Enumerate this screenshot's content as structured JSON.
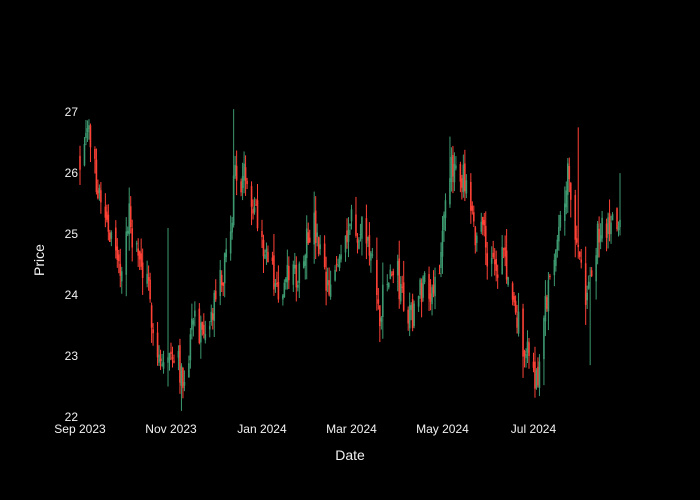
{
  "chart_data": {
    "type": "candlestick",
    "xlabel": "Date",
    "ylabel": "Price",
    "x_range": [
      "2023-09-01",
      "2024-08-28"
    ],
    "ylim": [
      21.95,
      27.2
    ],
    "x_ticks": [
      {
        "date": "2023-09-01",
        "label": "Sep 2023"
      },
      {
        "date": "2023-11-01",
        "label": "Nov 2023"
      },
      {
        "date": "2024-01-01",
        "label": "Jan 2024"
      },
      {
        "date": "2024-03-01",
        "label": "Mar 2024"
      },
      {
        "date": "2024-05-01",
        "label": "May 2024"
      },
      {
        "date": "2024-07-01",
        "label": "Jul 2024"
      }
    ],
    "y_ticks": [
      22,
      23,
      24,
      25,
      26,
      27
    ],
    "grid": false,
    "legend": "none",
    "colors": {
      "increasing": "#3d9970",
      "decreasing": "#ff4136",
      "background": "#000000",
      "text": "#f2f2f2"
    },
    "close_path": [
      [
        "2023-09-01",
        26.2
      ],
      [
        "2023-09-05",
        26.9
      ],
      [
        "2023-09-08",
        26.5
      ],
      [
        "2023-09-12",
        25.9
      ],
      [
        "2023-09-15",
        25.6
      ],
      [
        "2023-09-19",
        25.3
      ],
      [
        "2023-09-23",
        24.8
      ],
      [
        "2023-09-27",
        24.4
      ],
      [
        "2023-10-01",
        24.7
      ],
      [
        "2023-10-04",
        25.3
      ],
      [
        "2023-10-08",
        24.7
      ],
      [
        "2023-10-12",
        24.5
      ],
      [
        "2023-10-16",
        24.1
      ],
      [
        "2023-10-20",
        23.6
      ],
      [
        "2023-10-24",
        23.0
      ],
      [
        "2023-10-28",
        22.8
      ],
      [
        "2023-11-01",
        23.0
      ],
      [
        "2023-11-05",
        23.3
      ],
      [
        "2023-11-08",
        22.6
      ],
      [
        "2023-11-12",
        22.9
      ],
      [
        "2023-11-16",
        23.8
      ],
      [
        "2023-11-20",
        23.4
      ],
      [
        "2023-11-24",
        23.1
      ],
      [
        "2023-11-28",
        23.6
      ],
      [
        "2023-12-02",
        24.1
      ],
      [
        "2023-12-06",
        24.3
      ],
      [
        "2023-12-10",
        24.8
      ],
      [
        "2023-12-14",
        26.1
      ],
      [
        "2023-12-18",
        25.8
      ],
      [
        "2023-12-22",
        26.0
      ],
      [
        "2023-12-26",
        25.6
      ],
      [
        "2024-01-01",
        25.0
      ],
      [
        "2024-01-05",
        24.6
      ],
      [
        "2024-01-10",
        24.2
      ],
      [
        "2024-01-15",
        23.9
      ],
      [
        "2024-01-20",
        24.5
      ],
      [
        "2024-01-25",
        24.3
      ],
      [
        "2024-01-30",
        24.9
      ],
      [
        "2024-02-04",
        25.2
      ],
      [
        "2024-02-09",
        24.6
      ],
      [
        "2024-02-14",
        24.0
      ],
      [
        "2024-02-19",
        24.3
      ],
      [
        "2024-02-24",
        24.9
      ],
      [
        "2024-03-01",
        25.3
      ],
      [
        "2024-03-05",
        24.8
      ],
      [
        "2024-03-10",
        25.2
      ],
      [
        "2024-03-15",
        24.4
      ],
      [
        "2024-03-20",
        23.7
      ],
      [
        "2024-03-25",
        24.2
      ],
      [
        "2024-03-30",
        24.5
      ],
      [
        "2024-04-04",
        24.0
      ],
      [
        "2024-04-09",
        23.6
      ],
      [
        "2024-04-14",
        23.9
      ],
      [
        "2024-04-19",
        24.3
      ],
      [
        "2024-04-24",
        24.1
      ],
      [
        "2024-04-29",
        24.6
      ],
      [
        "2024-05-03",
        25.3
      ],
      [
        "2024-05-07",
        26.0
      ],
      [
        "2024-05-11",
        26.3
      ],
      [
        "2024-05-15",
        25.9
      ],
      [
        "2024-05-19",
        25.4
      ],
      [
        "2024-05-23",
        24.9
      ],
      [
        "2024-05-27",
        25.3
      ],
      [
        "2024-06-01",
        24.6
      ],
      [
        "2024-06-06",
        24.3
      ],
      [
        "2024-06-11",
        24.7
      ],
      [
        "2024-06-16",
        23.9
      ],
      [
        "2024-06-21",
        23.5
      ],
      [
        "2024-06-26",
        23.1
      ],
      [
        "2024-07-01",
        22.8
      ],
      [
        "2024-07-04",
        22.6
      ],
      [
        "2024-07-08",
        23.6
      ],
      [
        "2024-07-12",
        24.3
      ],
      [
        "2024-07-16",
        24.9
      ],
      [
        "2024-07-20",
        25.6
      ],
      [
        "2024-07-24",
        25.9
      ],
      [
        "2024-07-28",
        25.4
      ],
      [
        "2024-08-01",
        24.5
      ],
      [
        "2024-08-05",
        23.9
      ],
      [
        "2024-08-09",
        24.4
      ],
      [
        "2024-08-13",
        24.9
      ],
      [
        "2024-08-17",
        25.2
      ],
      [
        "2024-08-21",
        25.0
      ],
      [
        "2024-08-25",
        25.3
      ],
      [
        "2024-08-28",
        25.2
      ]
    ],
    "spikes": [
      {
        "date": "2023-10-30",
        "high": 25.1,
        "low": 22.5
      },
      {
        "date": "2023-11-08",
        "low": 22.1
      },
      {
        "date": "2023-12-13",
        "high": 27.05
      },
      {
        "date": "2024-05-05",
        "high": 26.6
      },
      {
        "date": "2024-07-31",
        "high": 26.75
      },
      {
        "date": "2024-08-08",
        "low": 22.85
      },
      {
        "date": "2024-08-28",
        "high": 26.0
      }
    ],
    "seed": 7
  }
}
